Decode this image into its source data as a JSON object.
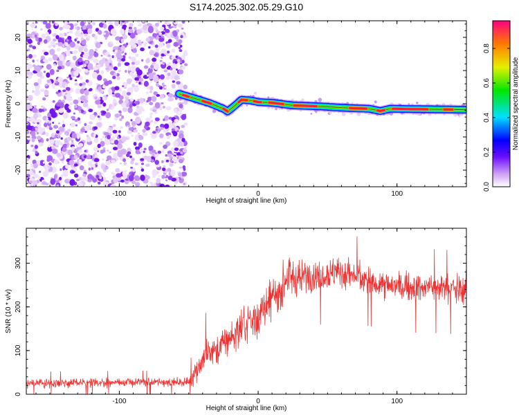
{
  "title": "S174.2025.302.05.29.G10",
  "chart_data": [
    {
      "type": "heatmap",
      "name": "spectrogram",
      "xlabel": "Height of straight line (km)",
      "ylabel": "Frequency (Hz)",
      "xlim": [
        -167,
        150
      ],
      "ylim": [
        -25,
        25
      ],
      "xticks": [
        -100,
        0,
        100
      ],
      "yticks": [
        20,
        10,
        0,
        -10,
        -20
      ],
      "noise_region_x": [
        -167,
        -55
      ],
      "ridge_x": [
        -57,
        -45,
        -35,
        -25,
        -22,
        -18,
        -12,
        -5,
        0,
        10,
        25,
        45,
        65,
        80,
        88,
        95,
        110,
        130,
        150
      ],
      "ridge_freq": [
        3,
        1.5,
        0.2,
        -1.5,
        -2.3,
        -1.0,
        1.2,
        1.0,
        0.5,
        0.3,
        -0.5,
        -0.8,
        -1.3,
        -1.5,
        -2.2,
        -1.5,
        -1.6,
        -1.7,
        -1.8
      ],
      "colorbar": {
        "label": "Normalized spectral amplitude",
        "range": [
          0,
          0.96
        ],
        "ticks": [
          "0.0",
          "0.2",
          "0.4",
          "0.6",
          "0.8"
        ],
        "tick_values": [
          0.0,
          0.2,
          0.4,
          0.6,
          0.8
        ]
      }
    },
    {
      "type": "line",
      "name": "snr",
      "xlabel": "Height of straight line (km)",
      "ylabel": "SNR (10 * v/v)",
      "xlim": [
        -167,
        150
      ],
      "ylim": [
        0,
        380
      ],
      "xticks": [
        -100,
        0,
        100
      ],
      "yticks": [
        0,
        100,
        200,
        300
      ],
      "color": "#ee3333",
      "envelope_x": [
        -167,
        -100,
        -50,
        -45,
        -40,
        -20,
        0,
        10,
        20,
        40,
        60,
        80,
        100,
        120,
        150
      ],
      "envelope_mean": [
        25,
        27,
        28,
        55,
        80,
        130,
        180,
        215,
        260,
        275,
        280,
        260,
        245,
        245,
        240
      ],
      "envelope_spread": [
        12,
        12,
        12,
        40,
        45,
        50,
        55,
        55,
        50,
        45,
        45,
        40,
        40,
        40,
        40
      ]
    }
  ]
}
